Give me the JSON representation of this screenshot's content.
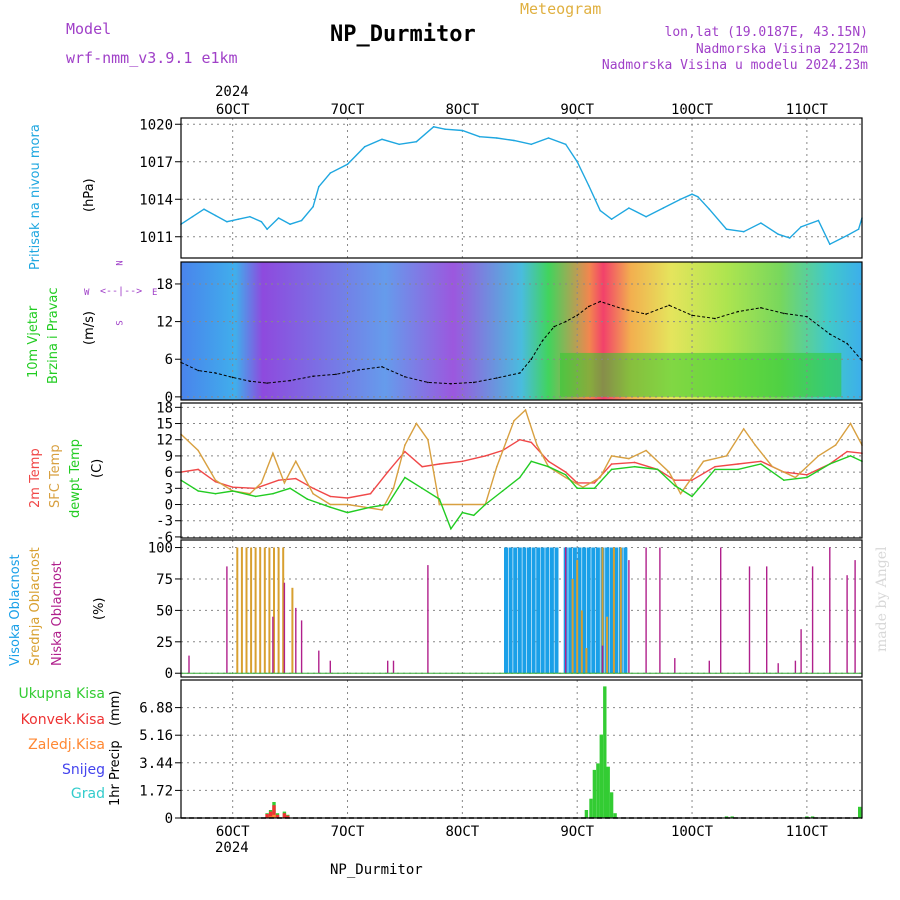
{
  "header": {
    "model_label": "Model",
    "model_name": "wrf-nmm_v3.9.1  e1km",
    "station": "NP_Durmitor",
    "meteogram_label": "Meteogram",
    "location": "lon,lat (19.0187E, 43.15N)",
    "elevation": "Nadmorska Visina 2212m",
    "model_elevation": "Nadmorska Visina u modelu 2024.23m",
    "year": "2024",
    "footer_station": "NP_Durmitor",
    "credit": "made by Angel"
  },
  "colors": {
    "pressure": "#1fa7e0",
    "temp2m": "#f04848",
    "sfc_temp": "#d8a040",
    "dewpoint": "#22cc22",
    "high_cloud": "#1aa0e8",
    "mid_cloud": "#d8a030",
    "low_cloud": "#b0208c",
    "total_precip": "#33cc33",
    "conv_precip": "#ee3333",
    "ice_precip": "#ff8833",
    "snow": "#4444ee",
    "graupel": "#33cccc",
    "wind_label": "#22cc22",
    "label_purple": "#a040c8",
    "title_gold": "#e0b040"
  },
  "chart_data": [
    {
      "type": "line",
      "title": "",
      "ylabel": "Pritisak na nivou mora",
      "units": "(hPa)",
      "x_unit": "day of October 2024",
      "xlim": [
        5.55,
        11.48
      ],
      "ylim": [
        1009.3,
        1020.5
      ],
      "yticks": [
        1011,
        1014,
        1017,
        1020
      ],
      "ytick_labels": [
        "1011",
        "1014",
        "1017",
        "1020"
      ],
      "grid": true,
      "series": [
        {
          "name": "",
          "x": [
            5.55,
            5.65,
            5.75,
            5.85,
            5.95,
            6.05,
            6.15,
            6.25,
            6.3,
            6.4,
            6.5,
            6.6,
            6.7,
            6.75,
            6.85,
            7.0,
            7.15,
            7.3,
            7.45,
            7.6,
            7.75,
            7.85,
            8.0,
            8.15,
            8.3,
            8.45,
            8.6,
            8.75,
            8.9,
            9.0,
            9.1,
            9.2,
            9.3,
            9.45,
            9.6,
            9.75,
            9.9,
            10.0,
            10.05,
            10.15,
            10.3,
            10.45,
            10.6,
            10.75,
            10.85,
            10.95,
            11.1,
            11.2,
            11.35,
            11.45,
            11.48
          ],
          "y": [
            1012.0,
            1012.6,
            1013.2,
            1012.7,
            1012.2,
            1012.4,
            1012.6,
            1012.2,
            1011.6,
            1012.5,
            1012.0,
            1012.3,
            1013.4,
            1015.0,
            1016.1,
            1016.8,
            1018.2,
            1018.8,
            1018.4,
            1018.6,
            1019.8,
            1019.6,
            1019.5,
            1019.0,
            1018.9,
            1018.7,
            1018.4,
            1018.9,
            1018.4,
            1017.0,
            1015.1,
            1013.1,
            1012.4,
            1013.3,
            1012.6,
            1013.3,
            1014.0,
            1014.4,
            1014.2,
            1013.2,
            1011.6,
            1011.4,
            1012.1,
            1011.2,
            1010.9,
            1011.8,
            1012.3,
            1010.4,
            1011.1,
            1011.6,
            1012.5
          ]
        }
      ]
    },
    {
      "type": "line",
      "title": "",
      "ylabel": "10m Vjetar Brzina i Pravac",
      "units": "(m/s)",
      "x_unit": "day of October 2024",
      "xlim": [
        5.55,
        11.48
      ],
      "ylim": [
        -0.5,
        21.5
      ],
      "yticks": [
        0,
        6,
        12,
        18
      ],
      "ytick_labels": [
        "0",
        "6",
        "12",
        "18"
      ],
      "grid": true,
      "compass": {
        "n": "N",
        "s": "S",
        "e": "E",
        "w": "W"
      },
      "series": [
        {
          "name": "",
          "x": [
            5.55,
            5.7,
            5.85,
            6.0,
            6.15,
            6.3,
            6.5,
            6.7,
            6.9,
            7.1,
            7.3,
            7.5,
            7.7,
            7.9,
            8.1,
            8.3,
            8.5,
            8.6,
            8.7,
            8.8,
            8.9,
            9.0,
            9.1,
            9.2,
            9.4,
            9.6,
            9.8,
            10.0,
            10.2,
            10.4,
            10.6,
            10.8,
            11.0,
            11.2,
            11.35,
            11.48
          ],
          "y": [
            5.5,
            4.2,
            3.8,
            3.1,
            2.5,
            2.2,
            2.6,
            3.3,
            3.6,
            4.3,
            4.8,
            3.2,
            2.3,
            2.1,
            2.3,
            3.0,
            3.8,
            6.0,
            9.0,
            11.2,
            12.0,
            13.0,
            14.4,
            15.2,
            14.0,
            13.2,
            14.6,
            13.0,
            12.5,
            13.6,
            14.2,
            13.3,
            12.8,
            10.0,
            8.5,
            5.8
          ]
        }
      ]
    },
    {
      "type": "line",
      "title": "",
      "ylabel": "2m Temp / SFC Temp / dewpt Temp",
      "units": "(C)",
      "x_unit": "day of October 2024",
      "xlim": [
        5.55,
        11.48
      ],
      "ylim": [
        -6.2,
        18.8
      ],
      "yticks": [
        -6,
        -3,
        0,
        3,
        6,
        9,
        12,
        15,
        18
      ],
      "ytick_labels": [
        "-6",
        "-3",
        "0",
        "3",
        "6",
        "9",
        "12",
        "15",
        "18"
      ],
      "grid": true,
      "series": [
        {
          "name": "2m Temp",
          "x": [
            5.55,
            5.7,
            5.85,
            6.0,
            6.2,
            6.4,
            6.55,
            6.7,
            6.85,
            7.0,
            7.2,
            7.35,
            7.5,
            7.65,
            7.8,
            8.0,
            8.2,
            8.35,
            8.5,
            8.6,
            8.75,
            8.9,
            9.0,
            9.15,
            9.3,
            9.5,
            9.7,
            9.85,
            10.0,
            10.2,
            10.4,
            10.6,
            10.8,
            11.0,
            11.2,
            11.35,
            11.48
          ],
          "y": [
            6.0,
            6.5,
            4.2,
            3.2,
            3.0,
            4.5,
            4.8,
            3.0,
            1.5,
            1.2,
            2.0,
            6.0,
            9.8,
            7.0,
            7.5,
            8.0,
            9.0,
            10.0,
            12.0,
            11.5,
            8.0,
            6.0,
            4.0,
            4.0,
            7.5,
            7.8,
            6.5,
            4.5,
            4.5,
            7.0,
            7.5,
            8.0,
            6.0,
            5.5,
            7.5,
            9.8,
            9.5
          ]
        },
        {
          "name": "SFC Temp",
          "x": [
            5.55,
            5.7,
            5.85,
            6.0,
            6.15,
            6.25,
            6.35,
            6.45,
            6.55,
            6.7,
            6.85,
            7.0,
            7.15,
            7.3,
            7.4,
            7.5,
            7.6,
            7.7,
            7.8,
            8.0,
            8.2,
            8.3,
            8.45,
            8.55,
            8.65,
            8.75,
            8.9,
            9.05,
            9.2,
            9.3,
            9.45,
            9.6,
            9.8,
            9.9,
            10.1,
            10.3,
            10.45,
            10.55,
            10.7,
            10.9,
            11.1,
            11.25,
            11.38,
            11.48
          ],
          "y": [
            13.0,
            10.0,
            4.5,
            2.5,
            2.0,
            4.0,
            9.5,
            4.0,
            8.0,
            2.0,
            0.0,
            0.0,
            -0.5,
            -1.0,
            3.0,
            11.0,
            15.0,
            12.0,
            0.0,
            0.0,
            0.0,
            7.0,
            15.5,
            17.5,
            11.0,
            7.0,
            5.0,
            3.2,
            5.0,
            9.0,
            8.5,
            10.0,
            6.0,
            2.0,
            8.0,
            9.0,
            14.0,
            11.0,
            7.0,
            5.0,
            9.0,
            11.0,
            15.0,
            11.0
          ]
        },
        {
          "name": "dewpt Temp",
          "x": [
            5.55,
            5.7,
            5.85,
            6.0,
            6.2,
            6.35,
            6.5,
            6.65,
            6.85,
            7.0,
            7.2,
            7.35,
            7.5,
            7.65,
            7.8,
            7.9,
            8.0,
            8.1,
            8.2,
            8.35,
            8.5,
            8.6,
            8.75,
            8.9,
            9.0,
            9.15,
            9.3,
            9.5,
            9.7,
            9.85,
            10.0,
            10.2,
            10.4,
            10.6,
            10.8,
            11.0,
            11.2,
            11.38,
            11.48
          ],
          "y": [
            4.5,
            2.5,
            2.0,
            2.5,
            1.5,
            2.0,
            3.0,
            1.0,
            -0.5,
            -1.5,
            -0.5,
            0.0,
            5.0,
            3.0,
            1.0,
            -4.5,
            -1.5,
            -2.0,
            0.0,
            2.5,
            5.0,
            8.0,
            7.0,
            5.5,
            3.0,
            3.0,
            6.5,
            7.0,
            6.5,
            3.5,
            1.5,
            6.5,
            6.5,
            7.5,
            4.5,
            5.0,
            7.5,
            9.0,
            8.0
          ]
        }
      ]
    },
    {
      "type": "bar",
      "title": "",
      "ylabel": "Visoka Oblacnost / Srednja Oblacnost / Niska Oblacnost",
      "units": "(%)",
      "x_unit": "day of October 2024",
      "xlim": [
        5.55,
        11.48
      ],
      "ylim": [
        -3,
        106
      ],
      "yticks": [
        0,
        25,
        50,
        75,
        100
      ],
      "ytick_labels": [
        "0",
        "25",
        "50",
        "75",
        "100"
      ],
      "grid": true,
      "series": [
        {
          "name": "Visoka Oblacnost",
          "x": [
            8.38,
            8.42,
            8.46,
            8.5,
            8.54,
            8.58,
            8.62,
            8.66,
            8.7,
            8.74,
            8.78,
            8.82,
            8.9,
            8.94,
            8.98,
            9.02,
            9.06,
            9.1,
            9.14,
            9.18,
            9.22,
            9.26,
            9.3,
            9.34,
            9.38,
            9.42
          ],
          "values": [
            100,
            100,
            100,
            100,
            100,
            100,
            100,
            100,
            100,
            100,
            100,
            100,
            100,
            100,
            100,
            100,
            100,
            100,
            100,
            100,
            100,
            100,
            100,
            100,
            100,
            100
          ]
        },
        {
          "name": "Srednja Oblacnost",
          "x": [
            6.04,
            6.08,
            6.12,
            6.16,
            6.2,
            6.24,
            6.28,
            6.32,
            6.36,
            6.4,
            6.44,
            6.52,
            8.96,
            9.0,
            9.04,
            9.08,
            9.22,
            9.26,
            9.32,
            9.38
          ],
          "values": [
            100,
            100,
            100,
            100,
            100,
            100,
            100,
            100,
            100,
            100,
            100,
            68,
            75,
            90,
            50,
            20,
            100,
            45,
            100,
            100
          ]
        },
        {
          "name": "Niska Oblacnost",
          "x": [
            5.62,
            5.95,
            6.35,
            6.45,
            6.55,
            6.6,
            6.75,
            6.85,
            7.35,
            7.4,
            7.7,
            8.9,
            9.22,
            9.45,
            9.6,
            9.72,
            9.85,
            10.15,
            10.25,
            10.5,
            10.65,
            10.75,
            10.9,
            10.95,
            11.05,
            11.2,
            11.35,
            11.42
          ],
          "values": [
            14,
            85,
            45,
            72,
            52,
            42,
            18,
            10,
            10,
            10,
            86,
            100,
            22,
            90,
            100,
            100,
            12,
            10,
            100,
            85,
            85,
            8,
            10,
            35,
            85,
            100,
            78,
            90
          ]
        }
      ]
    },
    {
      "type": "bar",
      "title": "",
      "ylabel": "1hr Precip",
      "units": "(mm)",
      "x_unit": "day of October 2024",
      "xlim": [
        5.55,
        11.48
      ],
      "ylim": [
        0,
        8.6
      ],
      "yticks": [
        0,
        1.72,
        3.44,
        5.16,
        6.88
      ],
      "ytick_labels": [
        "0",
        "1.72",
        "3.44",
        "5.16",
        "6.88"
      ],
      "grid": true,
      "legend": [
        "Ukupna Kisa",
        "Konvek.Kisa",
        "Zaledj.Kisa",
        "Snijeg",
        "Grad"
      ],
      "series": [
        {
          "name": "Ukupna Kisa",
          "x": [
            6.3,
            6.33,
            6.36,
            6.39,
            6.45,
            6.48,
            9.08,
            9.12,
            9.15,
            9.18,
            9.21,
            9.24,
            9.27,
            9.3,
            9.33,
            10.3,
            10.35,
            11.0,
            11.05,
            11.46
          ],
          "values": [
            0.3,
            0.5,
            1.0,
            0.3,
            0.4,
            0.2,
            0.5,
            1.2,
            3.0,
            3.4,
            5.2,
            8.2,
            3.2,
            1.6,
            0.3,
            0.1,
            0.1,
            0.1,
            0.1,
            0.7
          ]
        },
        {
          "name": "Konvek.Kisa",
          "x": [
            6.3,
            6.33,
            6.36,
            6.39,
            6.45,
            6.48
          ],
          "values": [
            0.25,
            0.4,
            0.8,
            0.2,
            0.3,
            0.15
          ]
        },
        {
          "name": "Zaledj.Kisa",
          "x": [
            6.33,
            6.36
          ],
          "values": [
            0.1,
            0.2
          ]
        }
      ]
    }
  ],
  "x_axis": {
    "ticks": [
      6,
      7,
      8,
      9,
      10,
      11
    ],
    "tick_labels": [
      "6OCT",
      "7OCT",
      "8OCT",
      "9OCT",
      "10OCT",
      "11OCT"
    ]
  },
  "panel_labels": {
    "pressure": [
      "Pritisak na nivou mora"
    ],
    "wind": [
      "10m Vjetar",
      "Brzina i Pravac"
    ],
    "temp": [
      "2m Temp",
      "SFC Temp",
      "dewpt Temp"
    ],
    "cloud": [
      "Visoka Oblacnost",
      "Srednja Oblacnost",
      "Niska Oblacnost"
    ]
  }
}
